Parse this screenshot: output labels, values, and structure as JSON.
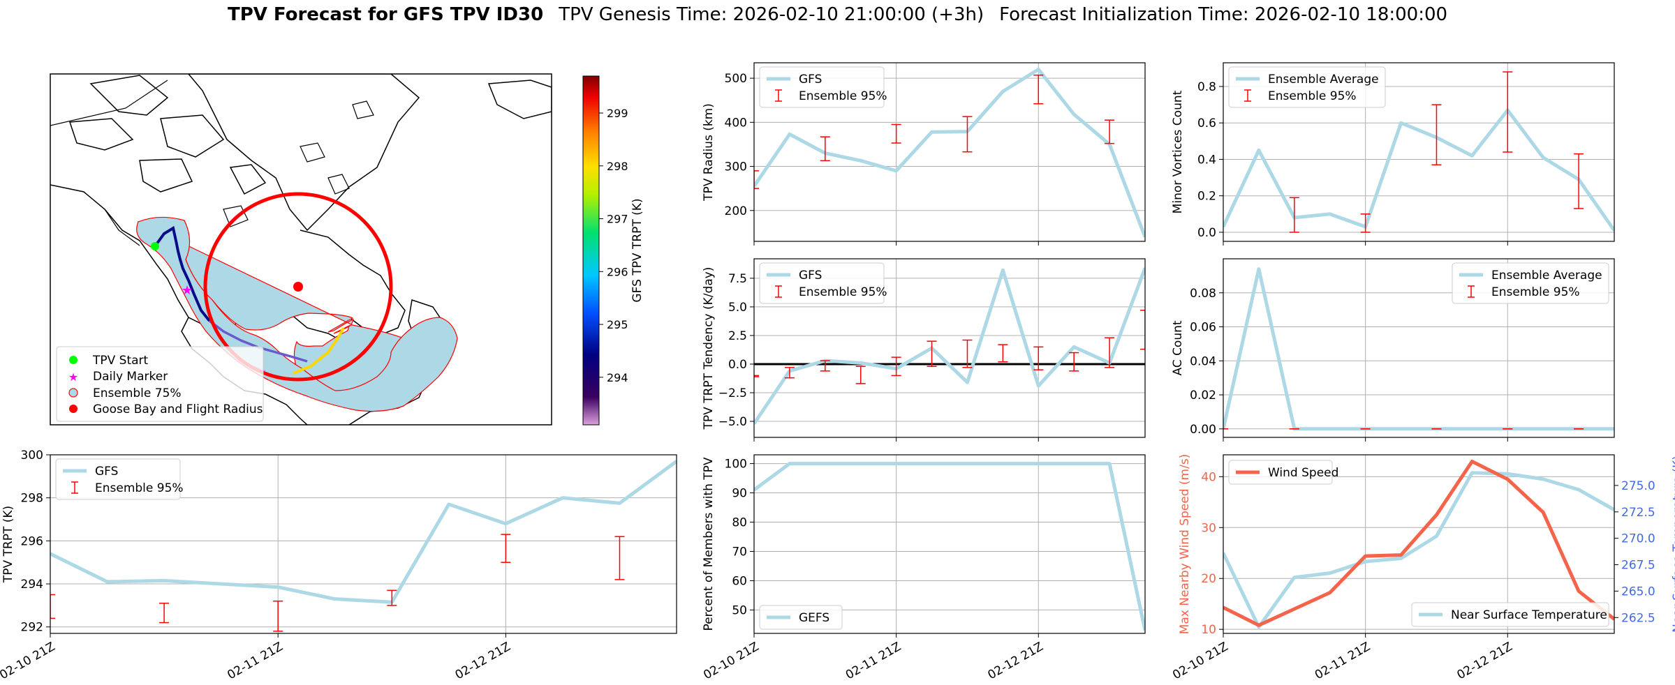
{
  "title": {
    "main": "TPV Forecast for GFS TPV ID30",
    "genesis": "TPV Genesis Time: 2026-02-10 21:00:00 (+3h)",
    "init": "Forecast Initialization Time: 2026-02-10 18:00:00"
  },
  "colors": {
    "gfs_line": "#add8e6",
    "error_bar": "#ff0000",
    "wind": "#f4634a",
    "temp_axis": "#4169e1",
    "track_start": "#00ff00",
    "daily_marker": "#ff00ff",
    "goose_bay": "#ff0000"
  },
  "x_ticks": [
    "02-10 21Z",
    "02-11 21Z",
    "02-12 21Z"
  ],
  "map": {
    "legend": [
      "TPV Start",
      "Daily Marker",
      "Ensemble 75%",
      "Goose Bay and Flight Radius"
    ],
    "colorbar": {
      "label": "GFS TPV TRPT (K)",
      "ticks": [
        294,
        295,
        296,
        297,
        298,
        299
      ],
      "range": [
        293.1,
        299.7
      ]
    }
  },
  "chart_data": [
    {
      "id": "radius",
      "type": "line",
      "ylabel": "TPV Radius (km)",
      "legend": [
        "GFS",
        "Ensemble 95%"
      ],
      "legend_loc": "upper-left",
      "x": [
        0,
        1,
        2,
        3,
        4,
        5,
        6,
        7,
        8,
        9,
        10,
        11
      ],
      "values": [
        255,
        373,
        330,
        313,
        290,
        378,
        379,
        470,
        520,
        418,
        350,
        140
      ],
      "ylim": [
        130,
        535
      ],
      "yticks": [
        200,
        300,
        400,
        500
      ],
      "errorbars": [
        {
          "x": 0,
          "low": 250,
          "high": 290
        },
        {
          "x": 2,
          "low": 313,
          "high": 367
        },
        {
          "x": 4,
          "low": 353,
          "high": 395
        },
        {
          "x": 6,
          "low": 333,
          "high": 413
        },
        {
          "x": 8,
          "low": 442,
          "high": 507
        },
        {
          "x": 10,
          "low": 352,
          "high": 405
        }
      ]
    },
    {
      "id": "minor",
      "type": "line",
      "ylabel": "Minor Vortices Count",
      "legend": [
        "Ensemble Average",
        "Ensemble 95%"
      ],
      "legend_loc": "upper-left",
      "x": [
        0,
        1,
        2,
        3,
        4,
        5,
        6,
        7,
        8,
        9,
        10,
        11
      ],
      "values": [
        0.03,
        0.45,
        0.08,
        0.1,
        0.03,
        0.6,
        0.52,
        0.42,
        0.67,
        0.41,
        0.29,
        0.01
      ],
      "ylim": [
        -0.05,
        0.93
      ],
      "yticks": [
        0.0,
        0.2,
        0.4,
        0.6,
        0.8
      ],
      "ytick_labels": [
        "0.0",
        "0.2",
        "0.4",
        "0.6",
        "0.8"
      ],
      "errorbars": [
        {
          "x": 2,
          "low": 0.0,
          "high": 0.19
        },
        {
          "x": 4,
          "low": 0.0,
          "high": 0.1
        },
        {
          "x": 6,
          "low": 0.37,
          "high": 0.7
        },
        {
          "x": 8,
          "low": 0.44,
          "high": 0.88
        },
        {
          "x": 10,
          "low": 0.13,
          "high": 0.43
        }
      ]
    },
    {
      "id": "tendency",
      "type": "line",
      "ylabel": "TPV TRPT Tendency (K/day)",
      "legend": [
        "GFS",
        "Ensemble 95%"
      ],
      "legend_loc": "upper-left",
      "x": [
        0,
        1,
        2,
        3,
        4,
        5,
        6,
        7,
        8,
        9,
        10,
        11
      ],
      "values": [
        -5.2,
        -0.6,
        0.3,
        0.1,
        -0.4,
        1.4,
        -1.6,
        8.2,
        -1.9,
        1.5,
        0.1,
        8.4
      ],
      "ylim": [
        -6.4,
        9.2
      ],
      "yticks": [
        -5.0,
        -2.5,
        0.0,
        2.5,
        5.0,
        7.5
      ],
      "ytick_labels": [
        "−5.0",
        "−2.5",
        "0.0",
        "2.5",
        "5.0",
        "7.5"
      ],
      "zero_line": true,
      "errorbars": [
        {
          "x": 0,
          "low": -1.1,
          "high": -1.0
        },
        {
          "x": 1,
          "low": -1.2,
          "high": -0.3
        },
        {
          "x": 2,
          "low": -0.6,
          "high": 0.3
        },
        {
          "x": 3,
          "low": -1.7,
          "high": -0.2
        },
        {
          "x": 4,
          "low": -1.0,
          "high": 0.6
        },
        {
          "x": 5,
          "low": -0.2,
          "high": 2.0
        },
        {
          "x": 6,
          "low": -0.3,
          "high": 2.1
        },
        {
          "x": 7,
          "low": 0.2,
          "high": 1.7
        },
        {
          "x": 8,
          "low": -0.5,
          "high": 1.5
        },
        {
          "x": 9,
          "low": -0.6,
          "high": 1.0
        },
        {
          "x": 10,
          "low": -0.3,
          "high": 2.3
        },
        {
          "x": 11,
          "low": 1.3,
          "high": 4.7
        }
      ]
    },
    {
      "id": "ac",
      "type": "line",
      "ylabel": "AC Count",
      "legend": [
        "Ensemble Average",
        "Ensemble 95%"
      ],
      "legend_loc": "upper-right",
      "x": [
        0,
        1,
        2,
        3,
        4,
        5,
        6,
        7,
        8,
        9,
        10,
        11
      ],
      "values": [
        0.0,
        0.094,
        0.0,
        0.0,
        0.0,
        0.0,
        0.0,
        0.0,
        0.0,
        0.0,
        0.0,
        0.0
      ],
      "ylim": [
        -0.005,
        0.1
      ],
      "yticks": [
        0.0,
        0.02,
        0.04,
        0.06,
        0.08
      ],
      "ytick_labels": [
        "0.00",
        "0.02",
        "0.04",
        "0.06",
        "0.08"
      ],
      "errorbars": [
        {
          "x": 0,
          "low": 0.0,
          "high": 0.0
        },
        {
          "x": 2,
          "low": 0.0,
          "high": 0.0
        },
        {
          "x": 4,
          "low": 0.0,
          "high": 0.0
        },
        {
          "x": 6,
          "low": 0.0,
          "high": 0.0
        },
        {
          "x": 8,
          "low": 0.0,
          "high": 0.0
        },
        {
          "x": 10,
          "low": 0.0,
          "high": 0.0
        }
      ]
    },
    {
      "id": "trpt",
      "type": "line",
      "ylabel": "TPV TRPT (K)",
      "legend": [
        "GFS",
        "Ensemble 95%"
      ],
      "legend_loc": "upper-left",
      "x": [
        0,
        1,
        2,
        3,
        4,
        5,
        6,
        7,
        8,
        9,
        10,
        11
      ],
      "values": [
        295.4,
        294.1,
        294.15,
        294.0,
        293.85,
        293.3,
        293.15,
        297.7,
        296.8,
        298.0,
        297.75,
        299.7
      ],
      "ylim": [
        291.7,
        300.0
      ],
      "yticks": [
        292,
        294,
        296,
        298,
        300
      ],
      "errorbars": [
        {
          "x": 0,
          "low": 292.4,
          "high": 293.5
        },
        {
          "x": 2,
          "low": 292.2,
          "high": 293.1
        },
        {
          "x": 4,
          "low": 291.8,
          "high": 293.2
        },
        {
          "x": 6,
          "low": 293.0,
          "high": 293.7
        },
        {
          "x": 8,
          "low": 295.0,
          "high": 296.3
        },
        {
          "x": 10,
          "low": 294.2,
          "high": 296.2
        }
      ]
    },
    {
      "id": "members",
      "type": "line",
      "ylabel": "Percent of Members with TPV",
      "legend": [
        "GEFS"
      ],
      "legend_loc": "lower-left",
      "x": [
        0,
        1,
        2,
        3,
        4,
        5,
        6,
        7,
        8,
        9,
        10,
        11
      ],
      "values": [
        91,
        100,
        100,
        100,
        100,
        100,
        100,
        100,
        100,
        100,
        100,
        43
      ],
      "ylim": [
        42,
        103
      ],
      "yticks": [
        50,
        60,
        70,
        80,
        90,
        100
      ]
    },
    {
      "id": "wind_temp",
      "type": "line",
      "ylabel": "Max Nearby Wind Speed (m/s)",
      "ylabel_right": "Near Surface Temperature (K)",
      "legend": [
        "Wind Speed",
        "Near Surface Temperature"
      ],
      "x": [
        0,
        1,
        2,
        3,
        4,
        5,
        6,
        7,
        8,
        9,
        10,
        11
      ],
      "series": [
        {
          "name": "Wind Speed",
          "axis": "left",
          "values": [
            14.3,
            10.8,
            14.0,
            17.2,
            24.4,
            24.6,
            32.5,
            43.0,
            39.5,
            33.0,
            17.5,
            12.0
          ]
        },
        {
          "name": "Near Surface Temperature",
          "axis": "right",
          "values": [
            268.6,
            261.6,
            266.3,
            266.7,
            267.8,
            268.1,
            270.2,
            276.2,
            276.1,
            275.6,
            274.6,
            272.7
          ]
        }
      ],
      "ylim": [
        9.2,
        44.3
      ],
      "yticks": [
        10,
        20,
        30,
        40
      ],
      "ylim_right": [
        261.0,
        277.9
      ],
      "yticks_right": [
        262.5,
        265.0,
        267.5,
        270.0,
        272.5,
        275.0
      ],
      "ytick_labels_right": [
        "262.5",
        "265.0",
        "267.5",
        "270.0",
        "272.5",
        "275.0"
      ]
    }
  ]
}
